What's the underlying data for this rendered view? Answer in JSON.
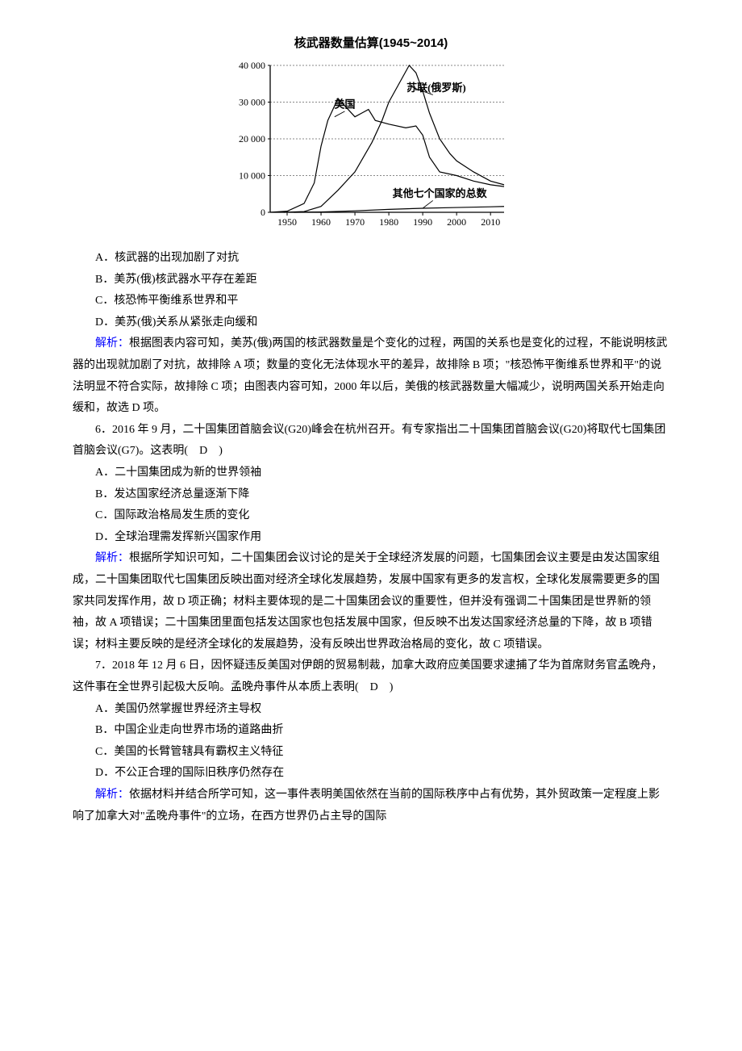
{
  "chart": {
    "type": "line",
    "title": "核武器数量估算(1945~2014)",
    "title_fontsize": 15,
    "title_fontweight": "bold",
    "background_color": "#ffffff",
    "axis_color": "#000000",
    "grid_dash": "2,2",
    "grid_color": "#888888",
    "y": {
      "min": 0,
      "max": 40000,
      "tick_step": 10000,
      "ticks": [
        0,
        10000,
        20000,
        30000,
        40000
      ],
      "tick_labels": [
        "0",
        "10 000",
        "20 000",
        "30 000",
        "40 000"
      ],
      "label_fontsize": 12
    },
    "x": {
      "min": 1945,
      "max": 2014,
      "ticks": [
        1950,
        1960,
        1970,
        1980,
        1990,
        2000,
        2010
      ],
      "tick_labels": [
        "1950",
        "1960",
        "1970",
        "1980",
        "1990",
        "2000",
        "2010"
      ],
      "label_fontsize": 12
    },
    "series": [
      {
        "name": "苏联(俄罗斯)",
        "label": "苏联(俄罗斯)",
        "label_pos": {
          "x": 1994,
          "y": 33000
        },
        "label_pointer": {
          "from": {
            "x": 1993,
            "y": 32000
          },
          "to": {
            "x": 1987,
            "y": 34000
          }
        },
        "color": "#000000",
        "line_width": 1.2,
        "data": [
          [
            1949,
            0
          ],
          [
            1955,
            200
          ],
          [
            1960,
            1600
          ],
          [
            1965,
            6000
          ],
          [
            1970,
            11000
          ],
          [
            1975,
            19000
          ],
          [
            1978,
            25000
          ],
          [
            1980,
            30000
          ],
          [
            1983,
            35000
          ],
          [
            1986,
            40000
          ],
          [
            1988,
            38000
          ],
          [
            1990,
            33000
          ],
          [
            1992,
            27000
          ],
          [
            1995,
            20000
          ],
          [
            1998,
            16000
          ],
          [
            2000,
            14000
          ],
          [
            2005,
            11000
          ],
          [
            2010,
            8500
          ],
          [
            2014,
            7500
          ]
        ]
      },
      {
        "name": "美国",
        "label": "美国",
        "label_pos": {
          "x": 1967,
          "y": 28500
        },
        "label_pointer": {
          "from": {
            "x": 1967,
            "y": 27500
          },
          "to": {
            "x": 1964,
            "y": 26000
          }
        },
        "color": "#000000",
        "line_width": 1.2,
        "data": [
          [
            1945,
            10
          ],
          [
            1950,
            300
          ],
          [
            1955,
            2400
          ],
          [
            1958,
            8000
          ],
          [
            1960,
            18000
          ],
          [
            1962,
            25000
          ],
          [
            1965,
            31000
          ],
          [
            1967,
            29000
          ],
          [
            1970,
            26000
          ],
          [
            1972,
            27000
          ],
          [
            1974,
            28000
          ],
          [
            1976,
            25000
          ],
          [
            1980,
            24000
          ],
          [
            1985,
            23000
          ],
          [
            1988,
            23500
          ],
          [
            1990,
            21000
          ],
          [
            1992,
            15000
          ],
          [
            1995,
            11000
          ],
          [
            2000,
            10000
          ],
          [
            2005,
            8500
          ],
          [
            2010,
            7500
          ],
          [
            2014,
            7000
          ]
        ]
      },
      {
        "name": "其他七个国家的总数",
        "label": "其他七个国家的总数",
        "label_pos": {
          "x": 1995,
          "y": 4200
        },
        "label_pointer": {
          "from": {
            "x": 1993,
            "y": 3200
          },
          "to": {
            "x": 1990,
            "y": 1100
          }
        },
        "color": "#000000",
        "line_width": 1.2,
        "data": [
          [
            1952,
            0
          ],
          [
            1960,
            100
          ],
          [
            1970,
            400
          ],
          [
            1980,
            800
          ],
          [
            1990,
            1100
          ],
          [
            2000,
            1300
          ],
          [
            2010,
            1500
          ],
          [
            2014,
            1600
          ]
        ]
      }
    ]
  },
  "q5": {
    "opt_a": "A．核武器的出现加剧了对抗",
    "opt_b": "B．美苏(俄)核武器水平存在差距",
    "opt_c": "C．核恐怖平衡维系世界和平",
    "opt_d": "D．美苏(俄)关系从紧张走向缓和",
    "explain_label": "解析：",
    "explain_text": "根据图表内容可知，美苏(俄)两国的核武器数量是个变化的过程，两国的关系也是变化的过程，不能说明核武器的出现就加剧了对抗，故排除 A 项；数量的变化无法体现水平的差异，故排除 B 项；\"核恐怖平衡维系世界和平\"的说法明显不符合实际，故排除 C 项；由图表内容可知，2000 年以后，美俄的核武器数量大幅减少，说明两国关系开始走向缓和，故选 D 项。"
  },
  "q6": {
    "stem": "6．2016 年 9 月，二十国集团首脑会议(G20)峰会在杭州召开。有专家指出二十国集团首脑会议(G20)将取代七国集团首脑会议(G7)。这表明(　D　)",
    "opt_a": "A．二十国集团成为新的世界领袖",
    "opt_b": "B．发达国家经济总量逐渐下降",
    "opt_c": "C．国际政治格局发生质的变化",
    "opt_d": "D．全球治理需发挥新兴国家作用",
    "explain_label": "解析：",
    "explain_text": "根据所学知识可知，二十国集团会议讨论的是关于全球经济发展的问题，七国集团会议主要是由发达国家组成，二十国集团取代七国集团反映出面对经济全球化发展趋势，发展中国家有更多的发言权，全球化发展需要更多的国家共同发挥作用，故 D 项正确；材料主要体现的是二十国集团会议的重要性，但并没有强调二十国集团是世界新的领袖，故 A 项错误；二十国集团里面包括发达国家也包括发展中国家，但反映不出发达国家经济总量的下降，故 B 项错误；材料主要反映的是经济全球化的发展趋势，没有反映出世界政治格局的变化，故 C 项错误。"
  },
  "q7": {
    "stem": "7．2018 年 12 月 6 日，因怀疑违反美国对伊朗的贸易制裁，加拿大政府应美国要求逮捕了华为首席财务官孟晚舟，这件事在全世界引起极大反响。孟晚舟事件从本质上表明(　D　)",
    "opt_a": "A．美国仍然掌握世界经济主导权",
    "opt_b": "B．中国企业走向世界市场的道路曲折",
    "opt_c": "C．美国的长臂管辖具有霸权主义特征",
    "opt_d": "D．不公正合理的国际旧秩序仍然存在",
    "explain_label": "解析：",
    "explain_text": "依据材料并结合所学可知，这一事件表明美国依然在当前的国际秩序中占有优势，其外贸政策一定程度上影响了加拿大对\"孟晚舟事件\"的立场，在西方世界仍占主导的国际"
  }
}
